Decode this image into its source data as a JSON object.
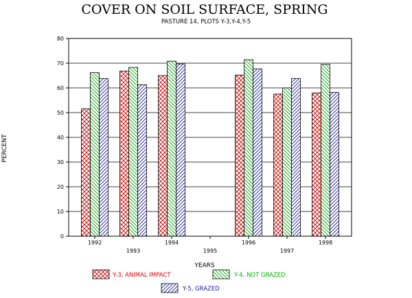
{
  "chart_data": {
    "type": "bar",
    "title": "COVER ON SOIL SURFACE, SPRING",
    "subtitle": "PASTURE 14, PLOTS Y-3,Y-4,Y-5",
    "xlabel": "YEARS",
    "ylabel": "PERCENT",
    "ylim": [
      0,
      80
    ],
    "yticks": [
      "0",
      "10",
      "20",
      "30",
      "40",
      "50",
      "60",
      "70",
      "80"
    ],
    "grid": true,
    "categories": [
      "1992",
      "1993",
      "1994",
      "1995",
      "1996",
      "1997",
      "1998"
    ],
    "series": [
      {
        "name": "Y-3, ANIMAL IMPACT",
        "color": "#e00000",
        "pattern": "crosshatch",
        "values": [
          51.5,
          66.8,
          65.0,
          null,
          65.2,
          57.5,
          58.0
        ]
      },
      {
        "name": "Y-4, NOT GRAZED",
        "color": "#00b000",
        "pattern": "diag-down",
        "values": [
          66.2,
          68.3,
          70.8,
          null,
          71.4,
          60.0,
          69.5
        ]
      },
      {
        "name": "Y-5, GRAZED",
        "color": "#1a1a9a",
        "pattern": "diag-up",
        "values": [
          63.8,
          61.3,
          69.7,
          null,
          67.7,
          63.8,
          58.2
        ]
      }
    ]
  }
}
